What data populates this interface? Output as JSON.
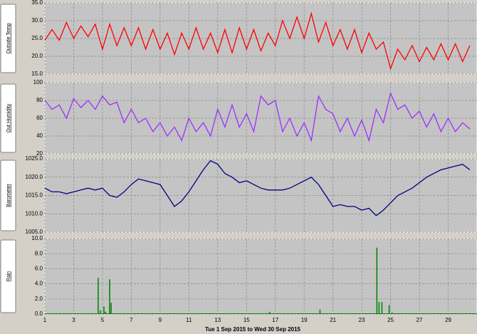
{
  "chart_data": [
    {
      "type": "line",
      "title": "Outside Temp",
      "color": "#ff0000",
      "x": [
        1,
        1.5,
        2,
        2.5,
        3,
        3.5,
        4,
        4.5,
        5,
        5.5,
        6,
        6.5,
        7,
        7.5,
        8,
        8.5,
        9,
        9.5,
        10,
        10.5,
        11,
        11.5,
        12,
        12.5,
        13,
        13.5,
        14,
        14.5,
        15,
        15.5,
        16,
        16.5,
        17,
        17.5,
        18,
        18.5,
        19,
        19.5,
        20,
        20.5,
        21,
        21.5,
        22,
        22.5,
        23,
        23.5,
        24,
        24.5,
        25,
        25.5,
        26,
        26.5,
        27,
        27.5,
        28,
        28.5,
        29,
        29.5,
        30,
        30.5
      ],
      "values": [
        24.5,
        27.5,
        24.5,
        29.5,
        25,
        28.5,
        25.5,
        29,
        22,
        29,
        23,
        28,
        23,
        28,
        22,
        27.5,
        22,
        26.5,
        20.5,
        26.5,
        22,
        28,
        22,
        26.5,
        21,
        27.5,
        21,
        28,
        22,
        27.5,
        21.5,
        26.5,
        23,
        30,
        25,
        31,
        25,
        32,
        24,
        29.5,
        23,
        27.5,
        22,
        27.5,
        21,
        26.5,
        22,
        24,
        16.5,
        22,
        19,
        23,
        18.5,
        22.5,
        19,
        23.5,
        19,
        23.5,
        18.5,
        23
      ],
      "xlim": [
        1,
        31
      ],
      "ylim": [
        15,
        35
      ],
      "yticks": [
        {
          "value": 15,
          "label": "15.0"
        },
        {
          "value": 20,
          "label": "20.0"
        },
        {
          "value": 25,
          "label": "25.0"
        },
        {
          "value": 30,
          "label": "30.0"
        },
        {
          "value": 35,
          "label": "35.0"
        }
      ],
      "grid": true
    },
    {
      "type": "line",
      "title": "Out Humidity",
      "color": "#9b30ff",
      "x": [
        1,
        1.5,
        2,
        2.5,
        3,
        3.5,
        4,
        4.5,
        5,
        5.5,
        6,
        6.5,
        7,
        7.5,
        8,
        8.5,
        9,
        9.5,
        10,
        10.5,
        11,
        11.5,
        12,
        12.5,
        13,
        13.5,
        14,
        14.5,
        15,
        15.5,
        16,
        16.5,
        17,
        17.5,
        18,
        18.5,
        19,
        19.5,
        20,
        20.5,
        21,
        21.5,
        22,
        22.5,
        23,
        23.5,
        24,
        24.5,
        25,
        25.5,
        26,
        26.5,
        27,
        27.5,
        28,
        28.5,
        29,
        29.5,
        30,
        30.5
      ],
      "values": [
        80,
        70,
        75,
        60,
        82,
        72,
        80,
        70,
        85,
        75,
        78,
        55,
        70,
        55,
        60,
        45,
        55,
        40,
        50,
        35,
        60,
        45,
        55,
        40,
        70,
        50,
        75,
        50,
        65,
        45,
        85,
        75,
        80,
        45,
        60,
        40,
        55,
        35,
        85,
        70,
        65,
        45,
        60,
        40,
        58,
        35,
        70,
        55,
        88,
        70,
        75,
        60,
        68,
        50,
        65,
        45,
        60,
        45,
        55,
        48
      ],
      "xlim": [
        1,
        31
      ],
      "ylim": [
        20,
        100
      ],
      "yticks": [
        20,
        40,
        60,
        80,
        100
      ],
      "grid": true
    },
    {
      "type": "line",
      "title": "Barometer",
      "color": "#000080",
      "x": [
        1,
        1.5,
        2,
        2.5,
        3,
        3.5,
        4,
        4.5,
        5,
        5.5,
        6,
        6.5,
        7,
        7.5,
        8,
        8.5,
        9,
        9.5,
        10,
        10.5,
        11,
        11.5,
        12,
        12.5,
        13,
        13.5,
        14,
        14.5,
        15,
        15.5,
        16,
        16.5,
        17,
        17.5,
        18,
        18.5,
        19,
        19.5,
        20,
        20.5,
        21,
        21.5,
        22,
        22.5,
        23,
        23.5,
        24,
        24.5,
        25,
        25.5,
        26,
        26.5,
        27,
        27.5,
        28,
        28.5,
        29,
        29.5,
        30,
        30.5
      ],
      "values": [
        1017,
        1016,
        1016,
        1015.5,
        1016,
        1016.5,
        1017,
        1016.5,
        1017,
        1015,
        1014.5,
        1016,
        1018,
        1019.5,
        1019,
        1018.5,
        1018,
        1015,
        1012,
        1013.5,
        1016,
        1019,
        1022,
        1024.5,
        1023.5,
        1021,
        1020,
        1018.5,
        1019,
        1018,
        1017,
        1016.5,
        1016.5,
        1016.5,
        1017,
        1018,
        1019,
        1020,
        1018,
        1015,
        1012,
        1012.5,
        1012,
        1012,
        1011,
        1011.5,
        1009.5,
        1011,
        1013,
        1015,
        1016,
        1017,
        1018.5,
        1020,
        1021,
        1022,
        1022.5,
        1023,
        1023.5,
        1022
      ],
      "xlim": [
        1,
        31
      ],
      "ylim": [
        1005,
        1025
      ],
      "yticks": [
        {
          "value": 1005,
          "label": "1005.0"
        },
        {
          "value": 1010,
          "label": "1010.0"
        },
        {
          "value": 1015,
          "label": "1015.0"
        },
        {
          "value": 1020,
          "label": "1020.0"
        },
        {
          "value": 1025,
          "label": "1025.0"
        }
      ],
      "grid": true
    },
    {
      "type": "bar",
      "title": "Rain",
      "color": "#008000",
      "x": [
        4.7,
        4.85,
        5.1,
        5.2,
        5.5,
        5.6,
        16.6,
        20.1,
        24.05,
        24.2,
        24.4,
        24.9,
        25.1
      ],
      "values": [
        4.8,
        0.5,
        1.0,
        0.3,
        4.6,
        1.5,
        0.3,
        0.6,
        8.8,
        1.6,
        1.6,
        1.2,
        0.2
      ],
      "xlim": [
        1,
        31
      ],
      "ylim": [
        0,
        10
      ],
      "yticks": [
        {
          "value": 0,
          "label": "0.0"
        },
        {
          "value": 2,
          "label": "2.0"
        },
        {
          "value": 4,
          "label": "4.0"
        },
        {
          "value": 6,
          "label": "6.0"
        },
        {
          "value": 8,
          "label": "8.0"
        },
        {
          "value": 10,
          "label": "10.0"
        }
      ],
      "xticks": [
        1,
        3,
        5,
        7,
        9,
        11,
        13,
        15,
        17,
        19,
        21,
        23,
        25,
        27,
        29
      ],
      "xlabel": "Tue 1 Sep 2015  to Wed 30 Sep 2015",
      "grid": true
    }
  ]
}
